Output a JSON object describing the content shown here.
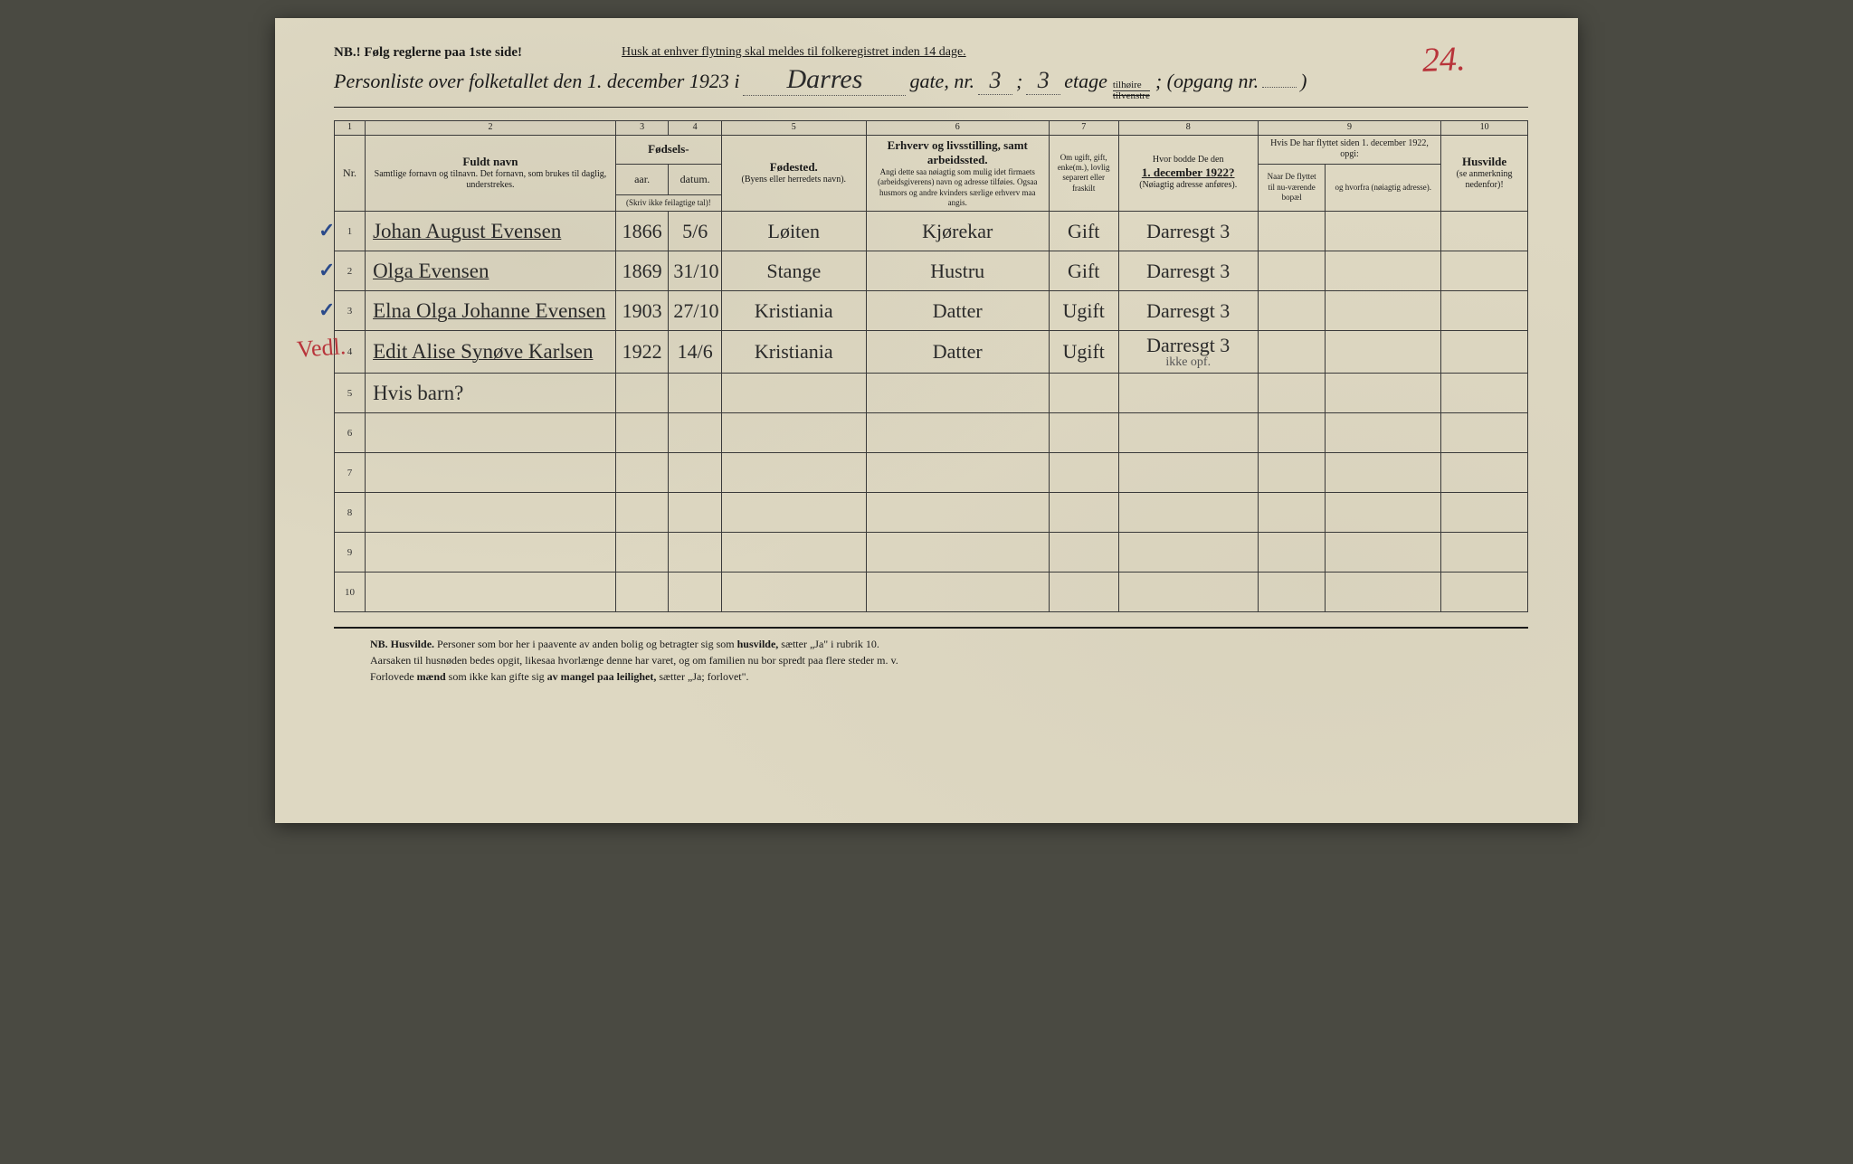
{
  "page_number_handwritten": "24.",
  "header": {
    "nb": "NB.! Følg reglerne paa 1ste side!",
    "reminder": "Husk at enhver flytning skal meldes til folkeregistret inden 14 dage.",
    "title_prefix": "Personliste over folketallet den 1. december 1923 i",
    "street": "Darres",
    "gate_label": "gate, nr.",
    "gate_nr": "3",
    "semicolon": ";",
    "etage_nr": "3",
    "etage_label": "etage",
    "side_top": "tilhøire",
    "side_bottom": "tilvenstre",
    "opgang_label": "; (opgang nr.",
    "opgang_nr": "",
    "close_paren": ")"
  },
  "colnums": [
    "1",
    "2",
    "3",
    "4",
    "5",
    "6",
    "7",
    "8",
    "9",
    "10"
  ],
  "headers": {
    "nr": "Nr.",
    "fuldt_navn": "Fuldt navn",
    "fuldt_navn_sub": "Samtlige fornavn og tilnavn. Det fornavn, som brukes til daglig, understrekes.",
    "fodsels": "Fødsels-",
    "aar": "aar.",
    "datum": "datum.",
    "aar_sub": "(Skriv ikke feilagtige tal)!",
    "fodested": "Fødested.",
    "fodested_sub": "(Byens eller herredets navn).",
    "erhverv": "Erhverv og livsstilling, samt arbeidssted.",
    "erhverv_sub": "Angi dette saa nøiagtig som mulig idet firmaets (arbeidsgiverens) navn og adresse tilføies. Ogsaa husmors og andre kvinders særlige erhverv maa angis.",
    "ugift": "Om ugift, gift, enke(m.), lovlig separert eller fraskilt",
    "bodde": "Hvor bodde De den",
    "bodde_date": "1. december 1922?",
    "bodde_sub": "(Nøiagtig adresse anføres).",
    "flyttet": "Hvis De har flyttet siden 1. december 1922, opgi:",
    "naar": "Naar De flyttet til nu-værende bopæl",
    "hvorfra": "og hvorfra (nøiagtig adresse).",
    "husvilde": "Husvilde",
    "husvilde_sub": "(se anmerkning nedenfor)!"
  },
  "rows": [
    {
      "nr": "1",
      "check": "✓",
      "name": "Johan August Evensen",
      "aar": "1866",
      "datum": "5/6",
      "fodested": "Løiten",
      "erhverv": "Kjørekar",
      "ugift": "Gift",
      "bodde": "Darresgt 3",
      "naar": "",
      "hvorfra": "",
      "husvilde": ""
    },
    {
      "nr": "2",
      "check": "✓",
      "name": "Olga Evensen",
      "aar": "1869",
      "datum": "31/10",
      "fodested": "Stange",
      "erhverv": "Hustru",
      "ugift": "Gift",
      "bodde": "Darresgt 3",
      "naar": "",
      "hvorfra": "",
      "husvilde": ""
    },
    {
      "nr": "3",
      "check": "✓",
      "name": "Elna Olga Johanne Evensen",
      "aar": "1903",
      "datum": "27/10",
      "fodested": "Kristiania",
      "erhverv": "Datter",
      "ugift": "Ugift",
      "bodde": "Darresgt 3",
      "naar": "",
      "hvorfra": "",
      "husvilde": ""
    },
    {
      "nr": "4",
      "check": "",
      "red": "Vedl.",
      "name": "Edit Alise Synøve Karlsen",
      "aar": "1922",
      "datum": "14/6",
      "fodested": "Kristiania",
      "erhverv": "Datter",
      "ugift": "Ugift",
      "bodde": "Darresgt 3",
      "bodde_sub": "ikke opf.",
      "naar": "",
      "hvorfra": "",
      "husvilde": ""
    }
  ],
  "row5_annotation": "Hvis barn?",
  "empty_rows": [
    "5",
    "6",
    "7",
    "8",
    "9",
    "10"
  ],
  "footnote": {
    "line1a": "NB. Husvilde.",
    "line1b": " Personer som bor her i paavente av anden bolig og betragter sig som ",
    "line1c": "husvilde,",
    "line1d": " sætter „Ja\" i rubrik 10.",
    "line2": "Aarsaken til husnøden bedes opgit, likesaa hvorlænge denne har varet, og om familien nu bor spredt paa flere steder m. v.",
    "line3a": "Forlovede ",
    "line3b": "mænd",
    "line3c": " som ikke kan gifte sig ",
    "line3d": "av mangel paa leilighet,",
    "line3e": " sætter „Ja; forlovet\"."
  },
  "colors": {
    "paper": "#ded8c2",
    "ink": "#1a1a1a",
    "handwriting": "#2a2a2a",
    "blue_ink": "#2a4a8a",
    "red_ink": "#b8343a"
  }
}
